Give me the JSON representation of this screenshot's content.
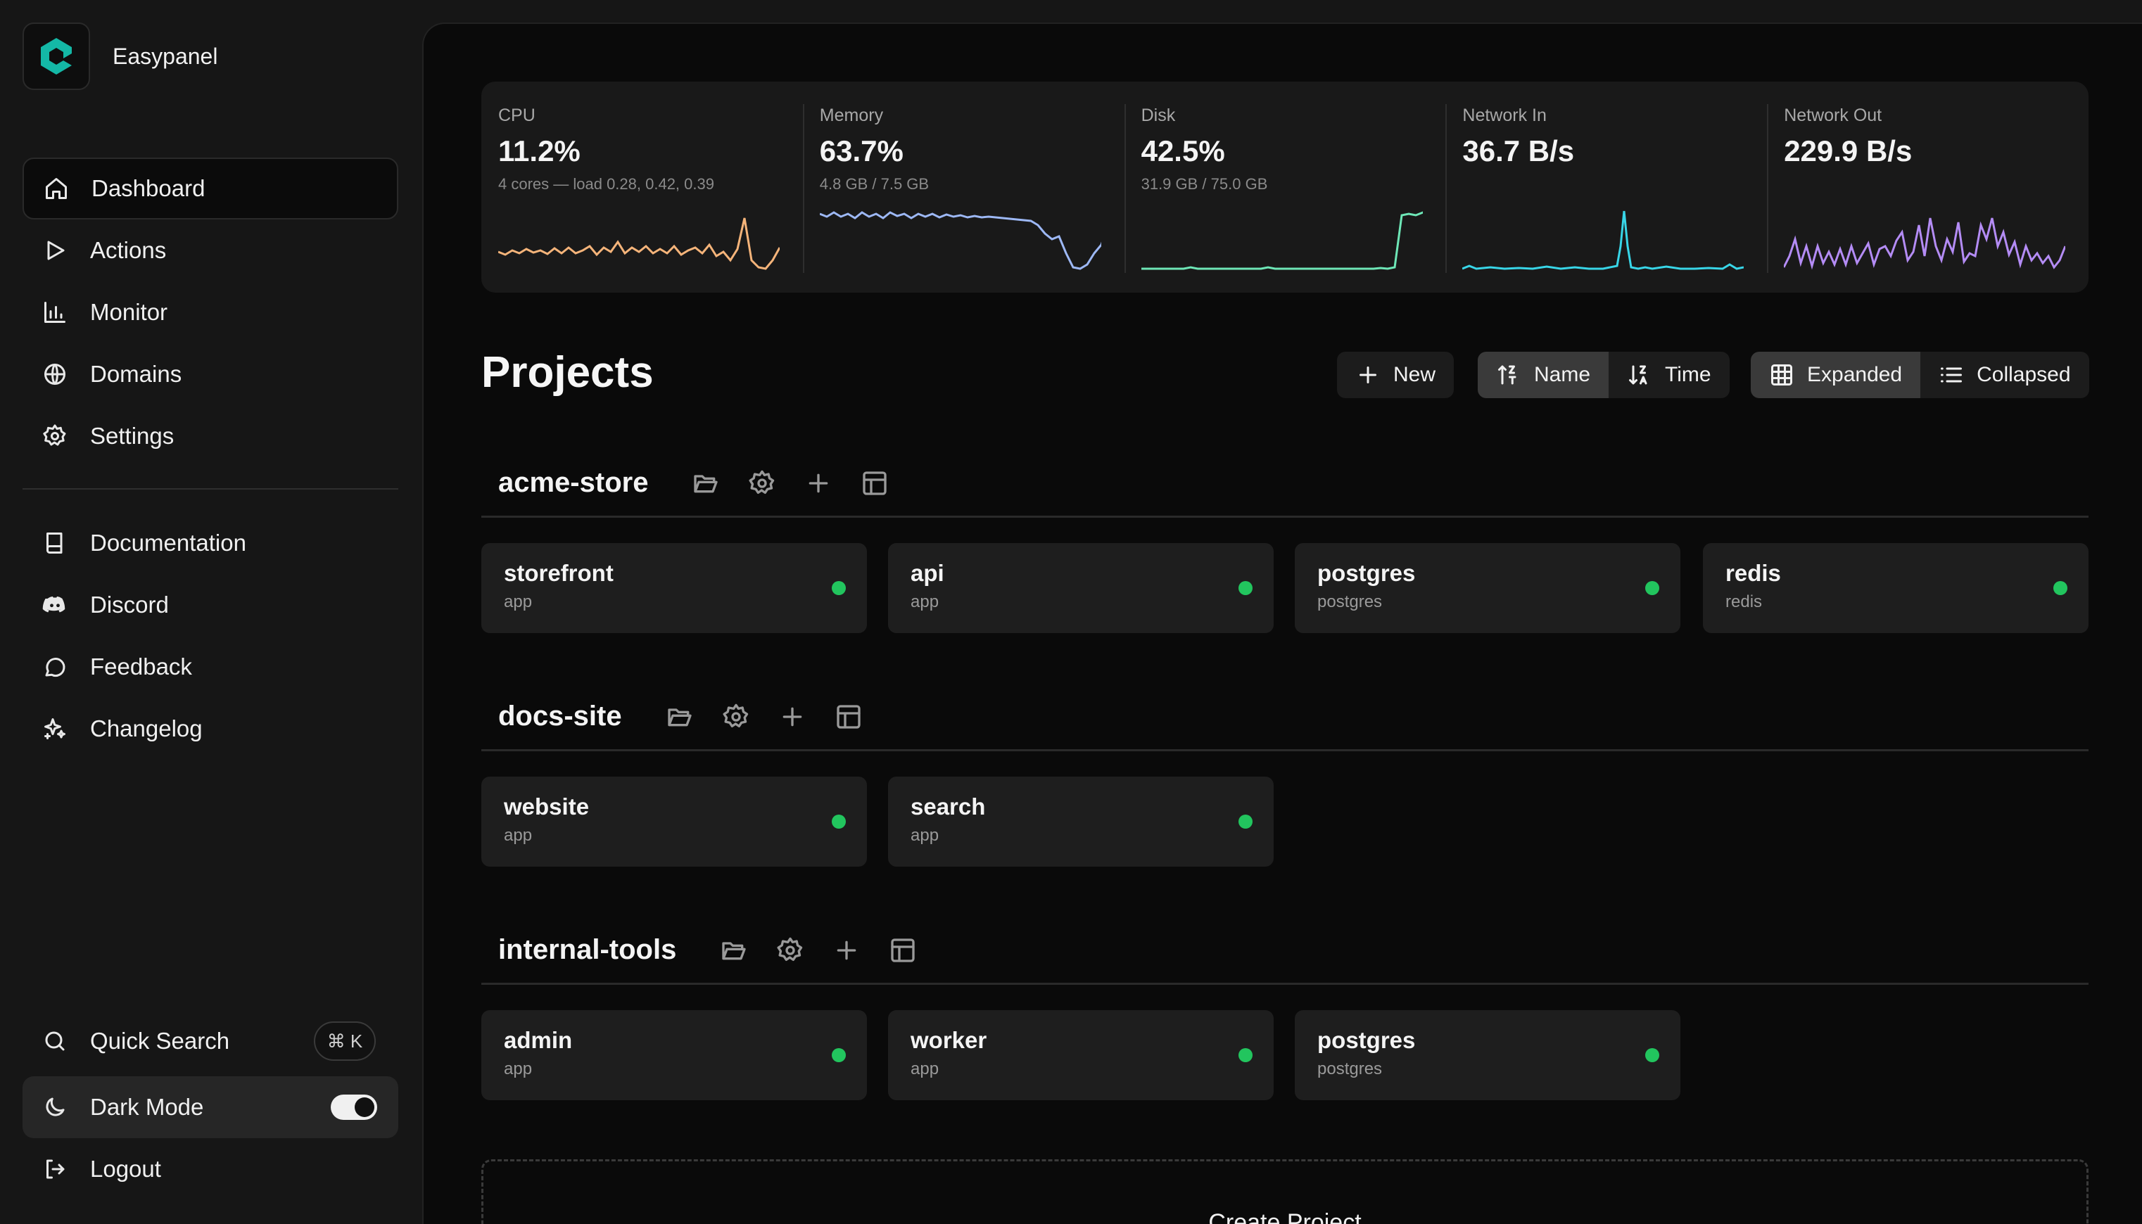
{
  "app": {
    "name": "Easypanel"
  },
  "colors": {
    "accent": "#14b8a6",
    "status_ok": "#22c55e",
    "cpu": "#f5b47a",
    "memory": "#9db8f5",
    "disk": "#6ee7b7",
    "network_in": "#38d6e8",
    "network_out": "#b48cf5"
  },
  "nav": {
    "main": [
      {
        "label": "Dashboard",
        "icon": "home-icon",
        "active": true
      },
      {
        "label": "Actions",
        "icon": "play-icon"
      },
      {
        "label": "Monitor",
        "icon": "bar-chart-icon"
      },
      {
        "label": "Domains",
        "icon": "globe-icon"
      },
      {
        "label": "Settings",
        "icon": "gear-icon"
      }
    ],
    "secondary": [
      {
        "label": "Documentation",
        "icon": "book-icon"
      },
      {
        "label": "Discord",
        "icon": "discord-icon"
      },
      {
        "label": "Feedback",
        "icon": "message-icon"
      },
      {
        "label": "Changelog",
        "icon": "sparkles-icon"
      }
    ],
    "bottom": {
      "quick_search": "Quick Search",
      "shortcut": "⌘ K",
      "dark_mode": "Dark Mode",
      "dark_mode_on": true,
      "logout": "Logout"
    }
  },
  "stats": [
    {
      "label": "CPU",
      "value": "11.2%",
      "sub": "4 cores — load 0.28, 0.42, 0.39"
    },
    {
      "label": "Memory",
      "value": "63.7%",
      "sub": "4.8 GB / 7.5 GB"
    },
    {
      "label": "Disk",
      "value": "42.5%",
      "sub": "31.9 GB / 75.0 GB"
    },
    {
      "label": "Network In",
      "value": "36.7 B/s",
      "sub": ""
    },
    {
      "label": "Network Out",
      "value": "229.9 B/s",
      "sub": ""
    }
  ],
  "projects_title": "Projects",
  "toolbar": {
    "new": "New",
    "sort_name": "Name",
    "sort_time": "Time",
    "view_expanded": "Expanded",
    "view_collapsed": "Collapsed",
    "sort_selected": "Name",
    "view_selected": "Expanded"
  },
  "projects": [
    {
      "name": "acme-store",
      "services": [
        {
          "name": "storefront",
          "type": "app"
        },
        {
          "name": "api",
          "type": "app"
        },
        {
          "name": "postgres",
          "type": "postgres"
        },
        {
          "name": "redis",
          "type": "redis"
        }
      ]
    },
    {
      "name": "docs-site",
      "services": [
        {
          "name": "website",
          "type": "app"
        },
        {
          "name": "search",
          "type": "app"
        }
      ]
    },
    {
      "name": "internal-tools",
      "services": [
        {
          "name": "admin",
          "type": "app"
        },
        {
          "name": "worker",
          "type": "app"
        },
        {
          "name": "postgres",
          "type": "postgres"
        }
      ]
    }
  ],
  "create_project": "Create Project"
}
